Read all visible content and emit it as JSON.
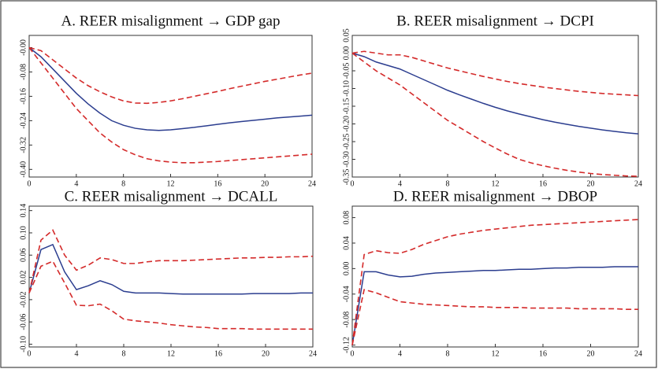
{
  "chart_data": [
    {
      "type": "line",
      "title": "A. REER misalignment → GDP gap",
      "x": [
        0,
        1,
        2,
        3,
        4,
        5,
        6,
        7,
        8,
        9,
        10,
        11,
        12,
        13,
        14,
        15,
        16,
        17,
        18,
        19,
        20,
        21,
        22,
        23,
        24
      ],
      "xlim": [
        0,
        24
      ],
      "xticks": [
        0,
        4,
        8,
        12,
        16,
        20,
        24
      ],
      "ylim": [
        -0.425,
        0.04
      ],
      "yticks": [
        {
          "value": 0,
          "label": "-0.00"
        },
        -0.08,
        -0.16,
        -0.24,
        -0.32,
        {
          "value": -0.4,
          "label": "-0.40"
        }
      ],
      "series": [
        {
          "color": "#2b3d8f",
          "dashed": false,
          "values": [
            0,
            -0.03,
            -0.07,
            -0.11,
            -0.15,
            -0.185,
            -0.215,
            -0.24,
            -0.255,
            -0.265,
            -0.27,
            -0.272,
            -0.27,
            -0.266,
            -0.262,
            -0.257,
            -0.252,
            -0.247,
            -0.243,
            -0.239,
            -0.235,
            -0.231,
            -0.228,
            -0.225,
            -0.222
          ]
        },
        {
          "color": "#d42a2a",
          "dashed": true,
          "values": [
            0,
            -0.01,
            -0.04,
            -0.07,
            -0.1,
            -0.125,
            -0.145,
            -0.162,
            -0.175,
            -0.182,
            -0.183,
            -0.18,
            -0.175,
            -0.168,
            -0.16,
            -0.152,
            -0.144,
            -0.135,
            -0.127,
            -0.119,
            -0.111,
            -0.104,
            -0.097,
            -0.09,
            -0.084
          ]
        },
        {
          "color": "#d42a2a",
          "dashed": true,
          "values": [
            0,
            -0.05,
            -0.1,
            -0.15,
            -0.2,
            -0.24,
            -0.28,
            -0.31,
            -0.335,
            -0.352,
            -0.365,
            -0.372,
            -0.376,
            -0.378,
            -0.378,
            -0.376,
            -0.374,
            -0.371,
            -0.368,
            -0.365,
            -0.362,
            -0.359,
            -0.356,
            -0.353,
            -0.35
          ]
        }
      ]
    },
    {
      "type": "line",
      "title": "B. REER misalignment → DCPI",
      "x": [
        0,
        1,
        2,
        3,
        4,
        5,
        6,
        7,
        8,
        9,
        10,
        11,
        12,
        13,
        14,
        15,
        16,
        17,
        18,
        19,
        20,
        21,
        22,
        23,
        24
      ],
      "xlim": [
        0,
        24
      ],
      "xticks": [
        0,
        4,
        8,
        12,
        16,
        20,
        24
      ],
      "ylim": [
        -0.35,
        0.05
      ],
      "yticks": [
        {
          "value": -0.35,
          "label": "-0.35"
        },
        {
          "value": -0.3,
          "label": "-0.30"
        },
        -0.25,
        {
          "value": -0.2,
          "label": "-0.20"
        },
        -0.15,
        {
          "value": -0.1,
          "label": "-0.10"
        },
        -0.05,
        {
          "value": 0,
          "label": "0.00"
        },
        0.05
      ],
      "series": [
        {
          "color": "#2b3d8f",
          "dashed": false,
          "values": [
            0,
            -0.01,
            -0.025,
            -0.035,
            -0.045,
            -0.06,
            -0.075,
            -0.09,
            -0.105,
            -0.118,
            -0.13,
            -0.142,
            -0.153,
            -0.163,
            -0.172,
            -0.18,
            -0.188,
            -0.195,
            -0.201,
            -0.207,
            -0.212,
            -0.217,
            -0.221,
            -0.225,
            -0.228
          ]
        },
        {
          "color": "#d42a2a",
          "dashed": true,
          "values": [
            0,
            0.005,
            0,
            -0.005,
            -0.005,
            -0.012,
            -0.022,
            -0.032,
            -0.042,
            -0.05,
            -0.058,
            -0.066,
            -0.073,
            -0.08,
            -0.086,
            -0.091,
            -0.096,
            -0.1,
            -0.104,
            -0.108,
            -0.111,
            -0.114,
            -0.116,
            -0.118,
            -0.12
          ]
        },
        {
          "color": "#d42a2a",
          "dashed": true,
          "values": [
            0,
            -0.025,
            -0.05,
            -0.07,
            -0.09,
            -0.115,
            -0.14,
            -0.165,
            -0.19,
            -0.21,
            -0.23,
            -0.25,
            -0.268,
            -0.285,
            -0.3,
            -0.31,
            -0.318,
            -0.325,
            -0.331,
            -0.336,
            -0.34,
            -0.343,
            -0.345,
            -0.347,
            -0.348
          ]
        }
      ]
    },
    {
      "type": "line",
      "title": "C. REER misalignment → DCALL",
      "x": [
        0,
        1,
        2,
        3,
        4,
        5,
        6,
        7,
        8,
        9,
        10,
        11,
        12,
        13,
        14,
        15,
        16,
        17,
        18,
        19,
        20,
        21,
        22,
        23,
        24
      ],
      "xlim": [
        0,
        24
      ],
      "xticks": [
        0,
        4,
        8,
        12,
        16,
        20,
        24
      ],
      "ylim": [
        -0.105,
        0.148
      ],
      "yticks": [
        {
          "value": -0.1,
          "label": "-0.10"
        },
        -0.06,
        -0.02,
        0.02,
        0.06,
        {
          "value": 0.1,
          "label": "0.10"
        },
        0.14
      ],
      "series": [
        {
          "color": "#2b3d8f",
          "dashed": false,
          "values": [
            -0.008,
            0.07,
            0.079,
            0.03,
            -0.002,
            0.005,
            0.014,
            0.007,
            -0.005,
            -0.008,
            -0.008,
            -0.008,
            -0.009,
            -0.01,
            -0.01,
            -0.01,
            -0.01,
            -0.01,
            -0.01,
            -0.009,
            -0.009,
            -0.009,
            -0.009,
            -0.008,
            -0.008
          ]
        },
        {
          "color": "#d42a2a",
          "dashed": true,
          "values": [
            -0.008,
            0.087,
            0.105,
            0.06,
            0.033,
            0.042,
            0.055,
            0.052,
            0.045,
            0.045,
            0.048,
            0.05,
            0.05,
            0.05,
            0.051,
            0.052,
            0.053,
            0.054,
            0.055,
            0.055,
            0.056,
            0.056,
            0.057,
            0.057,
            0.058
          ]
        },
        {
          "color": "#d42a2a",
          "dashed": true,
          "values": [
            -0.008,
            0.04,
            0.049,
            0.01,
            -0.03,
            -0.031,
            -0.028,
            -0.04,
            -0.055,
            -0.058,
            -0.06,
            -0.062,
            -0.065,
            -0.067,
            -0.069,
            -0.07,
            -0.072,
            -0.072,
            -0.072,
            -0.073,
            -0.073,
            -0.073,
            -0.073,
            -0.073,
            -0.073
          ]
        }
      ]
    },
    {
      "type": "line",
      "title": "D. REER misalignment → DBOP",
      "x": [
        0,
        1,
        2,
        3,
        4,
        5,
        6,
        7,
        8,
        9,
        10,
        11,
        12,
        13,
        14,
        15,
        16,
        17,
        18,
        19,
        20,
        21,
        22,
        23,
        24
      ],
      "xlim": [
        0,
        24
      ],
      "xticks": [
        0,
        4,
        8,
        12,
        16,
        20,
        24
      ],
      "ylim": [
        -0.123,
        0.098
      ],
      "yticks": [
        -0.12,
        -0.08,
        -0.04,
        {
          "value": 0,
          "label": "0.00"
        },
        0.04,
        0.08
      ],
      "series": [
        {
          "color": "#2b3d8f",
          "dashed": false,
          "values": [
            -0.12,
            -0.005,
            -0.005,
            -0.01,
            -0.013,
            -0.012,
            -0.009,
            -0.007,
            -0.006,
            -0.005,
            -0.004,
            -0.003,
            -0.003,
            -0.002,
            -0.001,
            -0.001,
            0,
            0.001,
            0.001,
            0.002,
            0.002,
            0.002,
            0.003,
            0.003,
            0.003
          ]
        },
        {
          "color": "#d42a2a",
          "dashed": true,
          "values": [
            -0.12,
            0.022,
            0.028,
            0.025,
            0.024,
            0.03,
            0.038,
            0.044,
            0.05,
            0.054,
            0.057,
            0.06,
            0.062,
            0.064,
            0.066,
            0.068,
            0.069,
            0.07,
            0.071,
            0.072,
            0.073,
            0.074,
            0.075,
            0.076,
            0.077
          ]
        },
        {
          "color": "#d42a2a",
          "dashed": true,
          "values": [
            -0.12,
            -0.033,
            -0.038,
            -0.045,
            -0.052,
            -0.054,
            -0.056,
            -0.057,
            -0.058,
            -0.059,
            -0.06,
            -0.06,
            -0.061,
            -0.061,
            -0.061,
            -0.062,
            -0.062,
            -0.062,
            -0.062,
            -0.063,
            -0.063,
            -0.063,
            -0.063,
            -0.064,
            -0.064
          ]
        }
      ]
    }
  ]
}
